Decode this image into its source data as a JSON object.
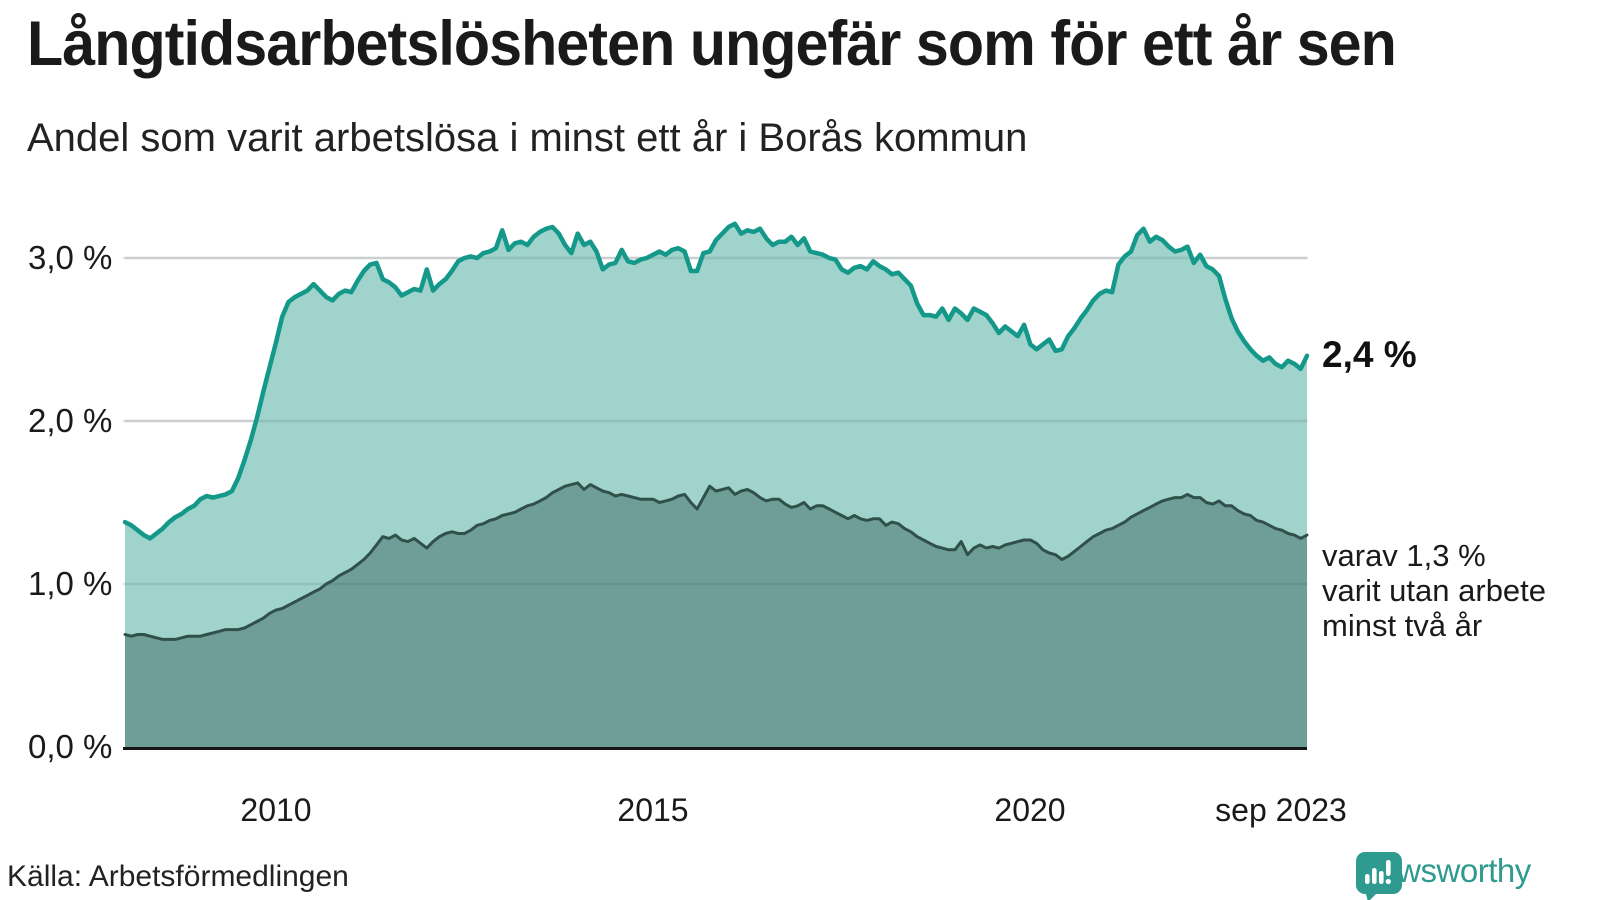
{
  "header": {
    "title": "Långtidsarbetslösheten ungefär som för ett år sen",
    "subtitle": "Andel som varit arbetslösa i minst ett år i Borås kommun"
  },
  "annotations": {
    "total_end_label": "2,4 %",
    "subset_label_lines": [
      "varav 1,3 %",
      "varit utan arbete",
      "minst två år"
    ]
  },
  "footer": {
    "source": "Källa: Arbetsförmedlingen",
    "brand": "Newsworthy"
  },
  "colors": {
    "total_line": "#149889",
    "total_fill": "#9fd3cc",
    "subset_line": "#30504a",
    "subset_fill": "#6f9e98",
    "gridline": "#e2e2e6",
    "baseline": "#161616",
    "brand_teal": "#2f9b90",
    "text": "#1a1a1a"
  },
  "chart_data": {
    "type": "area",
    "title": "Långtidsarbetslösheten ungefär som för ett år sen",
    "subtitle": "Andel som varit arbetslösa i minst ett år i Borås kommun",
    "unit": "%",
    "frequency": "monthly",
    "x_start": "2008-01",
    "x_end": "2023-09",
    "ylim": [
      0,
      3.45
    ],
    "grid": true,
    "gridlines": [
      1.0,
      2.0,
      3.0
    ],
    "yticks": [
      "0,0 %",
      "1,0 %",
      "2,0 %",
      "3,0 %"
    ],
    "xticks": [
      "2010",
      "2015",
      "2020",
      "sep 2023"
    ],
    "legend_position": "annotated-right",
    "series": [
      {
        "name": "Andel arbetslösa minst ett år",
        "end_value": 2.4,
        "end_value_label": "2,4 %",
        "values": [
          1.38,
          1.36,
          1.33,
          1.3,
          1.28,
          1.31,
          1.34,
          1.38,
          1.41,
          1.43,
          1.46,
          1.48,
          1.52,
          1.54,
          1.53,
          1.54,
          1.55,
          1.57,
          1.65,
          1.76,
          1.88,
          2.02,
          2.18,
          2.33,
          2.48,
          2.64,
          2.73,
          2.76,
          2.78,
          2.8,
          2.84,
          2.8,
          2.76,
          2.74,
          2.78,
          2.8,
          2.79,
          2.86,
          2.92,
          2.96,
          2.97,
          2.87,
          2.85,
          2.82,
          2.77,
          2.79,
          2.81,
          2.8,
          2.93,
          2.8,
          2.84,
          2.87,
          2.92,
          2.98,
          3.0,
          3.01,
          3.0,
          3.03,
          3.04,
          3.06,
          3.17,
          3.05,
          3.09,
          3.1,
          3.08,
          3.13,
          3.16,
          3.18,
          3.19,
          3.15,
          3.08,
          3.03,
          3.15,
          3.08,
          3.1,
          3.04,
          2.93,
          2.96,
          2.97,
          3.05,
          2.98,
          2.97,
          2.99,
          3.0,
          3.02,
          3.04,
          3.02,
          3.05,
          3.06,
          3.04,
          2.92,
          2.92,
          3.03,
          3.04,
          3.11,
          3.15,
          3.19,
          3.21,
          3.15,
          3.17,
          3.16,
          3.18,
          3.12,
          3.08,
          3.1,
          3.1,
          3.13,
          3.08,
          3.12,
          3.04,
          3.03,
          3.02,
          3.0,
          2.99,
          2.93,
          2.91,
          2.94,
          2.95,
          2.93,
          2.98,
          2.95,
          2.93,
          2.9,
          2.91,
          2.87,
          2.83,
          2.72,
          2.65,
          2.65,
          2.64,
          2.69,
          2.62,
          2.69,
          2.66,
          2.62,
          2.69,
          2.67,
          2.65,
          2.6,
          2.54,
          2.58,
          2.55,
          2.52,
          2.59,
          2.47,
          2.44,
          2.47,
          2.5,
          2.43,
          2.44,
          2.52,
          2.57,
          2.63,
          2.68,
          2.74,
          2.78,
          2.8,
          2.79,
          2.96,
          3.01,
          3.04,
          3.14,
          3.18,
          3.1,
          3.13,
          3.11,
          3.07,
          3.04,
          3.05,
          3.07,
          2.97,
          3.02,
          2.95,
          2.93,
          2.89,
          2.75,
          2.63,
          2.55,
          2.49,
          2.44,
          2.4,
          2.37,
          2.39,
          2.35,
          2.33,
          2.37,
          2.35,
          2.32,
          2.4
        ]
      },
      {
        "name": "varav utan arbete minst två år",
        "end_value": 1.3,
        "end_value_label": "1,3 %",
        "values": [
          0.69,
          0.68,
          0.69,
          0.69,
          0.68,
          0.67,
          0.66,
          0.66,
          0.66,
          0.67,
          0.68,
          0.68,
          0.68,
          0.69,
          0.7,
          0.71,
          0.72,
          0.72,
          0.72,
          0.73,
          0.75,
          0.77,
          0.79,
          0.82,
          0.84,
          0.85,
          0.87,
          0.89,
          0.91,
          0.93,
          0.95,
          0.97,
          1.0,
          1.02,
          1.05,
          1.07,
          1.09,
          1.12,
          1.15,
          1.19,
          1.24,
          1.29,
          1.28,
          1.3,
          1.27,
          1.26,
          1.28,
          1.25,
          1.22,
          1.26,
          1.29,
          1.31,
          1.32,
          1.31,
          1.31,
          1.33,
          1.36,
          1.37,
          1.39,
          1.4,
          1.42,
          1.43,
          1.44,
          1.46,
          1.48,
          1.49,
          1.51,
          1.53,
          1.56,
          1.58,
          1.6,
          1.61,
          1.62,
          1.58,
          1.61,
          1.59,
          1.57,
          1.56,
          1.54,
          1.55,
          1.54,
          1.53,
          1.52,
          1.52,
          1.52,
          1.5,
          1.51,
          1.52,
          1.54,
          1.55,
          1.5,
          1.46,
          1.53,
          1.6,
          1.57,
          1.58,
          1.59,
          1.55,
          1.57,
          1.58,
          1.56,
          1.53,
          1.51,
          1.52,
          1.52,
          1.49,
          1.47,
          1.48,
          1.5,
          1.46,
          1.48,
          1.48,
          1.46,
          1.44,
          1.42,
          1.4,
          1.42,
          1.4,
          1.39,
          1.4,
          1.4,
          1.36,
          1.38,
          1.37,
          1.34,
          1.32,
          1.29,
          1.27,
          1.25,
          1.23,
          1.22,
          1.21,
          1.21,
          1.26,
          1.18,
          1.22,
          1.24,
          1.22,
          1.23,
          1.22,
          1.24,
          1.25,
          1.26,
          1.27,
          1.27,
          1.25,
          1.21,
          1.19,
          1.18,
          1.15,
          1.17,
          1.2,
          1.23,
          1.26,
          1.29,
          1.31,
          1.33,
          1.34,
          1.36,
          1.38,
          1.41,
          1.43,
          1.45,
          1.47,
          1.49,
          1.51,
          1.52,
          1.53,
          1.53,
          1.55,
          1.53,
          1.53,
          1.5,
          1.49,
          1.51,
          1.48,
          1.48,
          1.45,
          1.43,
          1.42,
          1.39,
          1.38,
          1.36,
          1.34,
          1.33,
          1.31,
          1.3,
          1.28,
          1.3
        ]
      }
    ]
  }
}
